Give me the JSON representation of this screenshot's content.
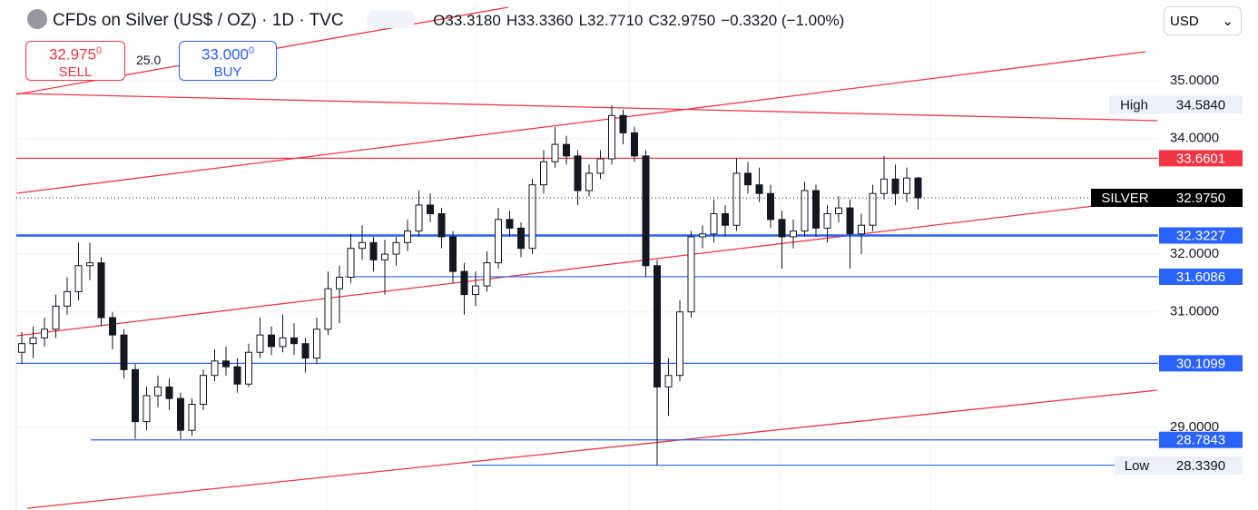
{
  "chart_data": {
    "type": "candlestick",
    "title": "CFDs on Silver (US$ / OZ) · 1D · TVC",
    "header_values": [
      "O33.3180",
      "H33.3360",
      "L32.7710",
      "C32.9750",
      "−0.3320 (−1.00%)"
    ],
    "sell": {
      "price": "32.975",
      "digit": "0",
      "label": "SELL"
    },
    "spread": "25.0",
    "buy": {
      "price": "33.000",
      "digit": "0",
      "label": "BUY"
    },
    "currency": "USD",
    "ylim": [
      27.57,
      36.4
    ],
    "yticks": [
      {
        "value": 29,
        "label": "29.0000"
      },
      {
        "value": 31,
        "label": "31.0000"
      },
      {
        "value": 32,
        "label": "32.0000"
      },
      {
        "value": 34,
        "label": "34.0000"
      },
      {
        "value": 35,
        "label": "35.0000"
      }
    ],
    "levels": [
      {
        "value": 33.6601,
        "color": "#f23645"
      },
      {
        "value": 32.3227,
        "color": "#2962ff"
      },
      {
        "value": 31.6086,
        "color": "#2962ff"
      },
      {
        "value": 30.1099,
        "color": "#2962ff"
      },
      {
        "value": 28.7843,
        "color": "#2962ff"
      },
      {
        "value": 28.3444,
        "color": "#2962ff"
      }
    ],
    "markers": [
      {
        "name": "High",
        "value": 34.584,
        "label": "34.5840"
      },
      {
        "name": "SILVER",
        "value": 32.975,
        "label": "32.9750"
      },
      {
        "name": "Low",
        "value": 28.339,
        "label": "28.3390"
      }
    ],
    "ohlc": [
      [
        30.3,
        30.65,
        30.1,
        30.45
      ],
      [
        30.45,
        30.75,
        30.2,
        30.55
      ],
      [
        30.55,
        30.9,
        30.4,
        30.7
      ],
      [
        30.7,
        31.3,
        30.55,
        31.1
      ],
      [
        31.1,
        31.6,
        30.95,
        31.35
      ],
      [
        31.35,
        32.2,
        31.2,
        31.8
      ],
      [
        31.8,
        32.2,
        31.55,
        31.85
      ],
      [
        31.85,
        31.95,
        30.75,
        30.9
      ],
      [
        30.9,
        31.0,
        30.35,
        30.6
      ],
      [
        30.6,
        30.7,
        29.85,
        30.0
      ],
      [
        30.0,
        30.1,
        28.8,
        29.1
      ],
      [
        29.1,
        29.7,
        28.95,
        29.55
      ],
      [
        29.55,
        29.9,
        29.35,
        29.7
      ],
      [
        29.7,
        29.85,
        29.3,
        29.5
      ],
      [
        29.5,
        29.6,
        28.8,
        28.95
      ],
      [
        28.95,
        29.5,
        28.85,
        29.4
      ],
      [
        29.4,
        30.0,
        29.3,
        29.9
      ],
      [
        29.9,
        30.35,
        29.8,
        30.15
      ],
      [
        30.15,
        30.4,
        29.9,
        30.05
      ],
      [
        30.05,
        30.2,
        29.6,
        29.75
      ],
      [
        29.75,
        30.45,
        29.7,
        30.3
      ],
      [
        30.3,
        30.9,
        30.2,
        30.6
      ],
      [
        30.6,
        30.75,
        30.25,
        30.4
      ],
      [
        30.4,
        30.95,
        30.3,
        30.55
      ],
      [
        30.55,
        30.8,
        30.25,
        30.45
      ],
      [
        30.45,
        30.55,
        29.95,
        30.2
      ],
      [
        30.2,
        30.9,
        30.1,
        30.7
      ],
      [
        30.7,
        31.7,
        30.6,
        31.4
      ],
      [
        31.4,
        31.8,
        30.8,
        31.6
      ],
      [
        31.6,
        32.35,
        31.5,
        32.1
      ],
      [
        32.1,
        32.5,
        31.9,
        32.2
      ],
      [
        32.2,
        32.3,
        31.7,
        31.9
      ],
      [
        31.9,
        32.25,
        31.3,
        32.0
      ],
      [
        32.0,
        32.3,
        31.8,
        32.2
      ],
      [
        32.2,
        32.6,
        32.05,
        32.4
      ],
      [
        32.4,
        33.1,
        32.3,
        32.85
      ],
      [
        32.85,
        33.05,
        32.55,
        32.7
      ],
      [
        32.7,
        32.8,
        32.1,
        32.3
      ],
      [
        32.3,
        32.4,
        31.5,
        31.7
      ],
      [
        31.7,
        31.85,
        30.95,
        31.3
      ],
      [
        31.3,
        31.7,
        31.1,
        31.45
      ],
      [
        31.45,
        32.05,
        31.35,
        31.85
      ],
      [
        31.85,
        32.8,
        31.75,
        32.6
      ],
      [
        32.6,
        32.75,
        32.3,
        32.45
      ],
      [
        32.45,
        32.55,
        31.95,
        32.1
      ],
      [
        32.1,
        33.3,
        32.0,
        33.2
      ],
      [
        33.2,
        33.8,
        33.05,
        33.6
      ],
      [
        33.6,
        34.2,
        33.5,
        33.9
      ],
      [
        33.9,
        34.05,
        33.55,
        33.7
      ],
      [
        33.7,
        33.8,
        32.85,
        33.1
      ],
      [
        33.1,
        33.55,
        33.0,
        33.4
      ],
      [
        33.4,
        33.8,
        33.3,
        33.65
      ],
      [
        33.65,
        34.58,
        33.55,
        34.4
      ],
      [
        34.4,
        34.5,
        33.9,
        34.1
      ],
      [
        34.1,
        34.2,
        33.6,
        33.7
      ],
      [
        33.7,
        33.8,
        31.6,
        31.8
      ],
      [
        31.8,
        31.9,
        28.34,
        29.7
      ],
      [
        29.7,
        30.2,
        29.2,
        29.9
      ],
      [
        29.9,
        31.2,
        29.8,
        31.0
      ],
      [
        31.0,
        32.4,
        30.9,
        32.3
      ],
      [
        32.3,
        32.5,
        32.1,
        32.35
      ],
      [
        32.35,
        32.95,
        32.2,
        32.7
      ],
      [
        32.7,
        32.85,
        32.3,
        32.5
      ],
      [
        32.5,
        33.66,
        32.4,
        33.4
      ],
      [
        33.4,
        33.6,
        33.05,
        33.2
      ],
      [
        33.2,
        33.5,
        32.9,
        33.05
      ],
      [
        33.05,
        33.2,
        32.45,
        32.6
      ],
      [
        32.6,
        32.75,
        31.75,
        32.3
      ],
      [
        32.3,
        32.6,
        32.1,
        32.4
      ],
      [
        32.4,
        33.25,
        32.3,
        33.1
      ],
      [
        33.1,
        33.2,
        32.3,
        32.45
      ],
      [
        32.45,
        32.85,
        32.2,
        32.7
      ],
      [
        32.7,
        33.0,
        32.55,
        32.8
      ],
      [
        32.8,
        32.95,
        31.75,
        32.35
      ],
      [
        32.35,
        32.7,
        32.0,
        32.5
      ],
      [
        32.5,
        33.2,
        32.4,
        33.05
      ],
      [
        33.05,
        33.7,
        32.95,
        33.3
      ],
      [
        33.3,
        33.55,
        32.85,
        33.05
      ],
      [
        33.05,
        33.5,
        32.9,
        33.318
      ],
      [
        33.318,
        33.336,
        32.771,
        32.975
      ]
    ]
  }
}
